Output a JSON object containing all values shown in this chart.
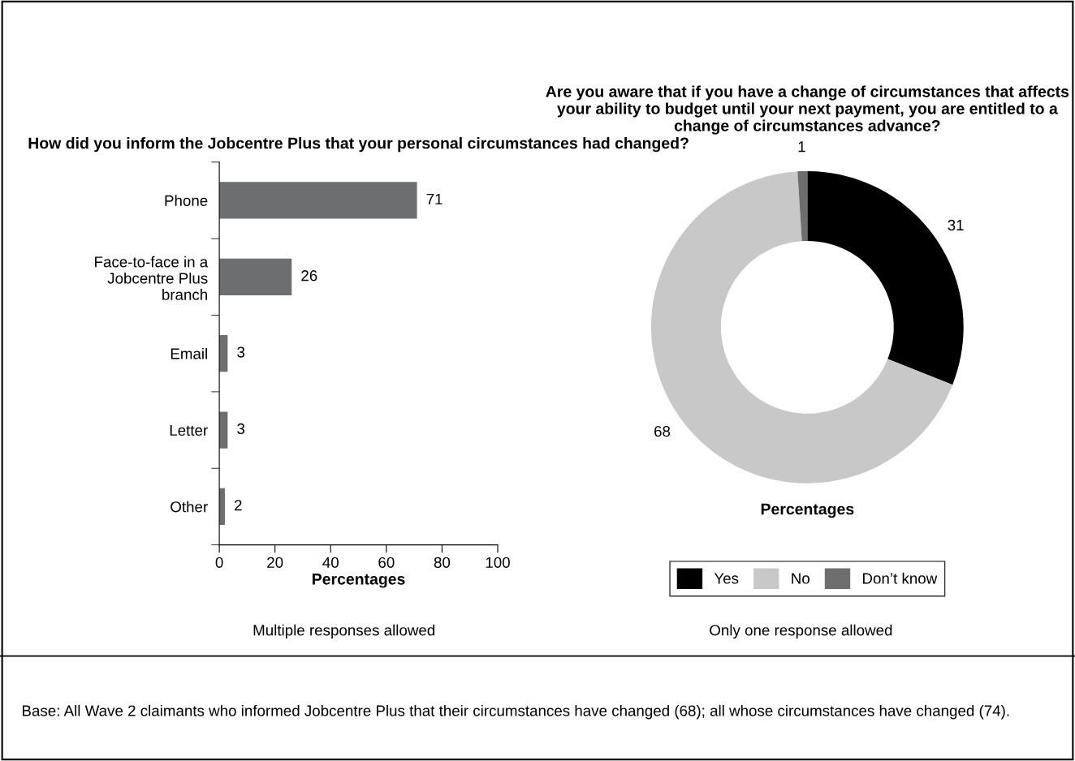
{
  "chart_data": [
    {
      "type": "bar",
      "orientation": "horizontal",
      "title": "How did you inform the Jobcentre Plus that your personal circumstances had changed?",
      "categories": [
        "Phone",
        "Face-to-face in a\nJobcentre Plus\nbranch",
        "Email",
        "Letter",
        "Other"
      ],
      "values": [
        71,
        26,
        3,
        3,
        2
      ],
      "color": "#6d6e70",
      "data_labels": true,
      "xlim": [
        0,
        100
      ],
      "xticks": [
        0,
        20,
        40,
        60,
        80,
        100
      ],
      "xlabel": "Percentages",
      "grid": false,
      "annotations": [
        "Multiple responses allowed",
        "Base: All Wave 2 claimants who informed Jobcentre Plus that their circumstances have changed (68); all whose circumstances have changed (74)."
      ]
    },
    {
      "type": "donut",
      "title": "Are you aware that if you have a change of circumstances that affects your ability to budget until your next payment, you are entitled to a change of circumstances advance?",
      "categories": [
        "Yes",
        "No",
        "Don’t know"
      ],
      "values": [
        31,
        68,
        1
      ],
      "colors": [
        "#000000",
        "#c8c8c8",
        "#6d6e70"
      ],
      "data_labels": true,
      "xlabel": "Percentages",
      "legend": "bottom",
      "annotations": [
        "Only one response allowed"
      ]
    }
  ]
}
